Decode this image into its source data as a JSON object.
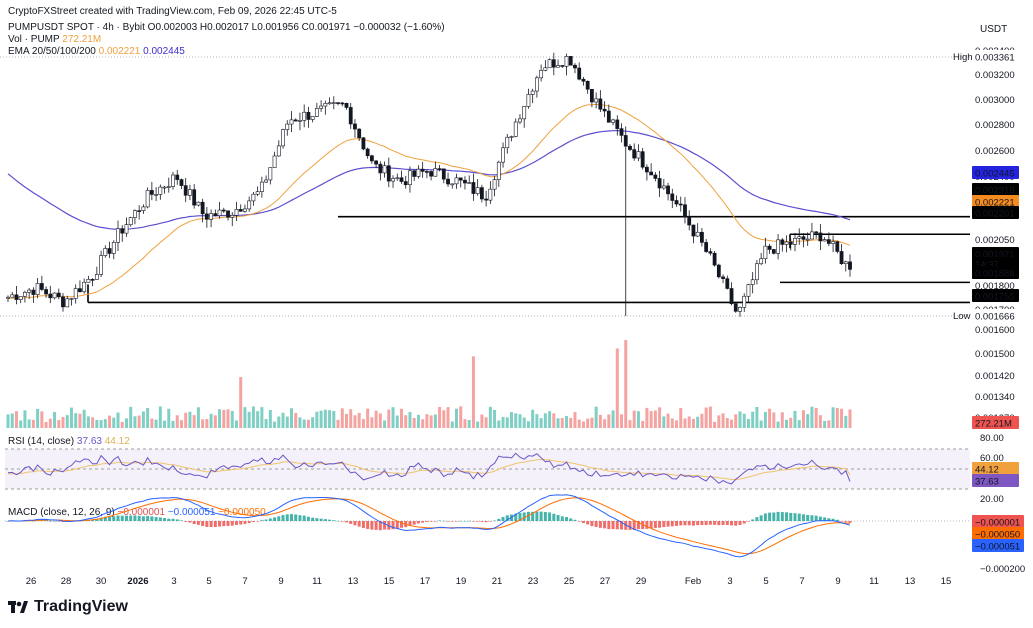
{
  "header": {
    "created_line": "CryptoFXStreet created with TradingView.com, Feb 09, 2026 22:45 UTC-5",
    "symbol_line": "PUMPUSDT SPOT · 4h · Bybit  O0.002003  H0.002017  L0.001956  C0.001971  −0.000032 (−1.60%)",
    "vol_label": "Vol · PUMP",
    "vol_value": "272.21M",
    "ema_label": "EMA 20/50/100/200",
    "ema_value_1": "0.002221",
    "ema_value_2": "0.002445",
    "currency": "USDT"
  },
  "colors": {
    "up": "#26a69a",
    "down": "#ef5350",
    "ema_orange": "#f0a03c",
    "ema_purple": "#5b4ed1",
    "rsi_line": "#6a56c9",
    "rsi_ma": "#f0c46c",
    "macd_line": "#2962ff",
    "signal_line": "#ff6d00"
  },
  "price_axis": {
    "ticks": [
      "0.003400",
      "0.003200",
      "0.003000",
      "0.002800",
      "0.002600",
      "0.002400",
      "0.002050",
      "0.001800",
      "0.001700",
      "0.001600",
      "0.001500",
      "0.001420",
      "0.001340",
      "0.001270"
    ],
    "high_label": "High",
    "high_value": "0.003361",
    "low_label": "Low",
    "low_value": "0.001666",
    "badges": [
      {
        "value": "0.002445",
        "color": "#2323e0",
        "text_color": "#ffffff"
      },
      {
        "value": "0.002316",
        "color": "#000000",
        "text_color": "#ffffff"
      },
      {
        "value": "0.002221",
        "color": "#f68b1f",
        "text_color": "#ffffff"
      },
      {
        "value": "0.002201",
        "color": "#000000",
        "text_color": "#ffffff"
      },
      {
        "value": "0.001971",
        "color": "#000000",
        "text_color": "#ffffff"
      },
      {
        "value": "14:37",
        "color": "#000000",
        "text_color": "#ffffff"
      },
      {
        "value": "0.001886",
        "color": "#000000",
        "text_color": "#ffffff"
      },
      {
        "value": "0.001755",
        "color": "#000000",
        "text_color": "#ffffff"
      },
      {
        "value": "272.21M",
        "color": "#ef5350",
        "text_color": "#ffffff"
      }
    ]
  },
  "rsi": {
    "label": "RSI (14, close)",
    "value_1": "37.63",
    "value_2": "44.12",
    "ticks": [
      "80.00",
      "60.00",
      "20.00"
    ],
    "badge_ma": "44.12",
    "badge_rsi": "37.63"
  },
  "macd": {
    "label": "MACD (close, 12, 26, 9)",
    "value_1": "−0.000001",
    "value_2": "−0.000051",
    "value_3": "−0.000050",
    "badges": [
      "−0.000001",
      "−0.000050",
      "−0.000051"
    ],
    "bottom_tick": "−0.000200"
  },
  "time_axis": [
    "26",
    "28",
    "30",
    "2026",
    "3",
    "5",
    "7",
    "9",
    "11",
    "13",
    "15",
    "17",
    "19",
    "21",
    "23",
    "25",
    "27",
    "29",
    "Feb",
    "3",
    "5",
    "7",
    "9",
    "11",
    "13",
    "15"
  ],
  "logo_text": "TradingView",
  "chart_data": {
    "type": "candlestick",
    "title": "PUMPUSDT SPOT · 4h · Bybit",
    "x_ticks": [
      "26",
      "28",
      "30",
      "2026",
      "3",
      "5",
      "7",
      "9",
      "11",
      "13",
      "15",
      "17",
      "19",
      "21",
      "23",
      "25",
      "27",
      "29",
      "Feb",
      "3",
      "5",
      "7",
      "9",
      "11",
      "13",
      "15"
    ],
    "price_path_key_points": [
      {
        "date": "Dec 25",
        "close": 0.00179
      },
      {
        "date": "Dec 28",
        "close": 0.00185
      },
      {
        "date": "Dec 29",
        "close": 0.00176
      },
      {
        "date": "Jan 1",
        "close": 0.00193
      },
      {
        "date": "Jan 3",
        "close": 0.00222
      },
      {
        "date": "Jan 5",
        "close": 0.00245
      },
      {
        "date": "Jan 7",
        "close": 0.00258
      },
      {
        "date": "Jan 8",
        "close": 0.00232
      },
      {
        "date": "Jan 10",
        "close": 0.00235
      },
      {
        "date": "Jan 12",
        "close": 0.00248
      },
      {
        "date": "Jan 14",
        "close": 0.00295
      },
      {
        "date": "Jan 16",
        "close": 0.003
      },
      {
        "date": "Jan 17",
        "close": 0.00305
      },
      {
        "date": "Jan 18",
        "close": 0.00265
      },
      {
        "date": "Jan 20",
        "close": 0.00255
      },
      {
        "date": "Jan 22",
        "close": 0.00262
      },
      {
        "date": "Jan 24",
        "close": 0.00255
      },
      {
        "date": "Jan 25",
        "close": 0.00245
      },
      {
        "date": "Jan 26",
        "close": 0.0029
      },
      {
        "date": "Jan 27",
        "close": 0.0033
      },
      {
        "date": "Jan 28",
        "close": 0.00336
      },
      {
        "date": "Jan 29",
        "close": 0.00305
      },
      {
        "date": "Jan 31",
        "close": 0.0028
      },
      {
        "date": "Feb 2",
        "close": 0.0026
      },
      {
        "date": "Feb 4",
        "close": 0.00235
      },
      {
        "date": "Feb 5",
        "close": 0.00205
      },
      {
        "date": "Feb 5b",
        "close": 0.00167
      },
      {
        "date": "Feb 6",
        "close": 0.0021
      },
      {
        "date": "Feb 7",
        "close": 0.00215
      },
      {
        "date": "Feb 8",
        "close": 0.0022
      },
      {
        "date": "Feb 9",
        "close": 0.00197
      }
    ],
    "horizontal_levels": [
      0.002316,
      0.002201,
      0.001886,
      0.001755
    ],
    "ema_100": 0.002221,
    "ema_200": 0.002445,
    "rsi_last": 37.63,
    "rsi_ma_last": 44.12,
    "macd_last": -5.1e-05,
    "signal_last": -5e-05,
    "hist_last": -1e-06
  }
}
